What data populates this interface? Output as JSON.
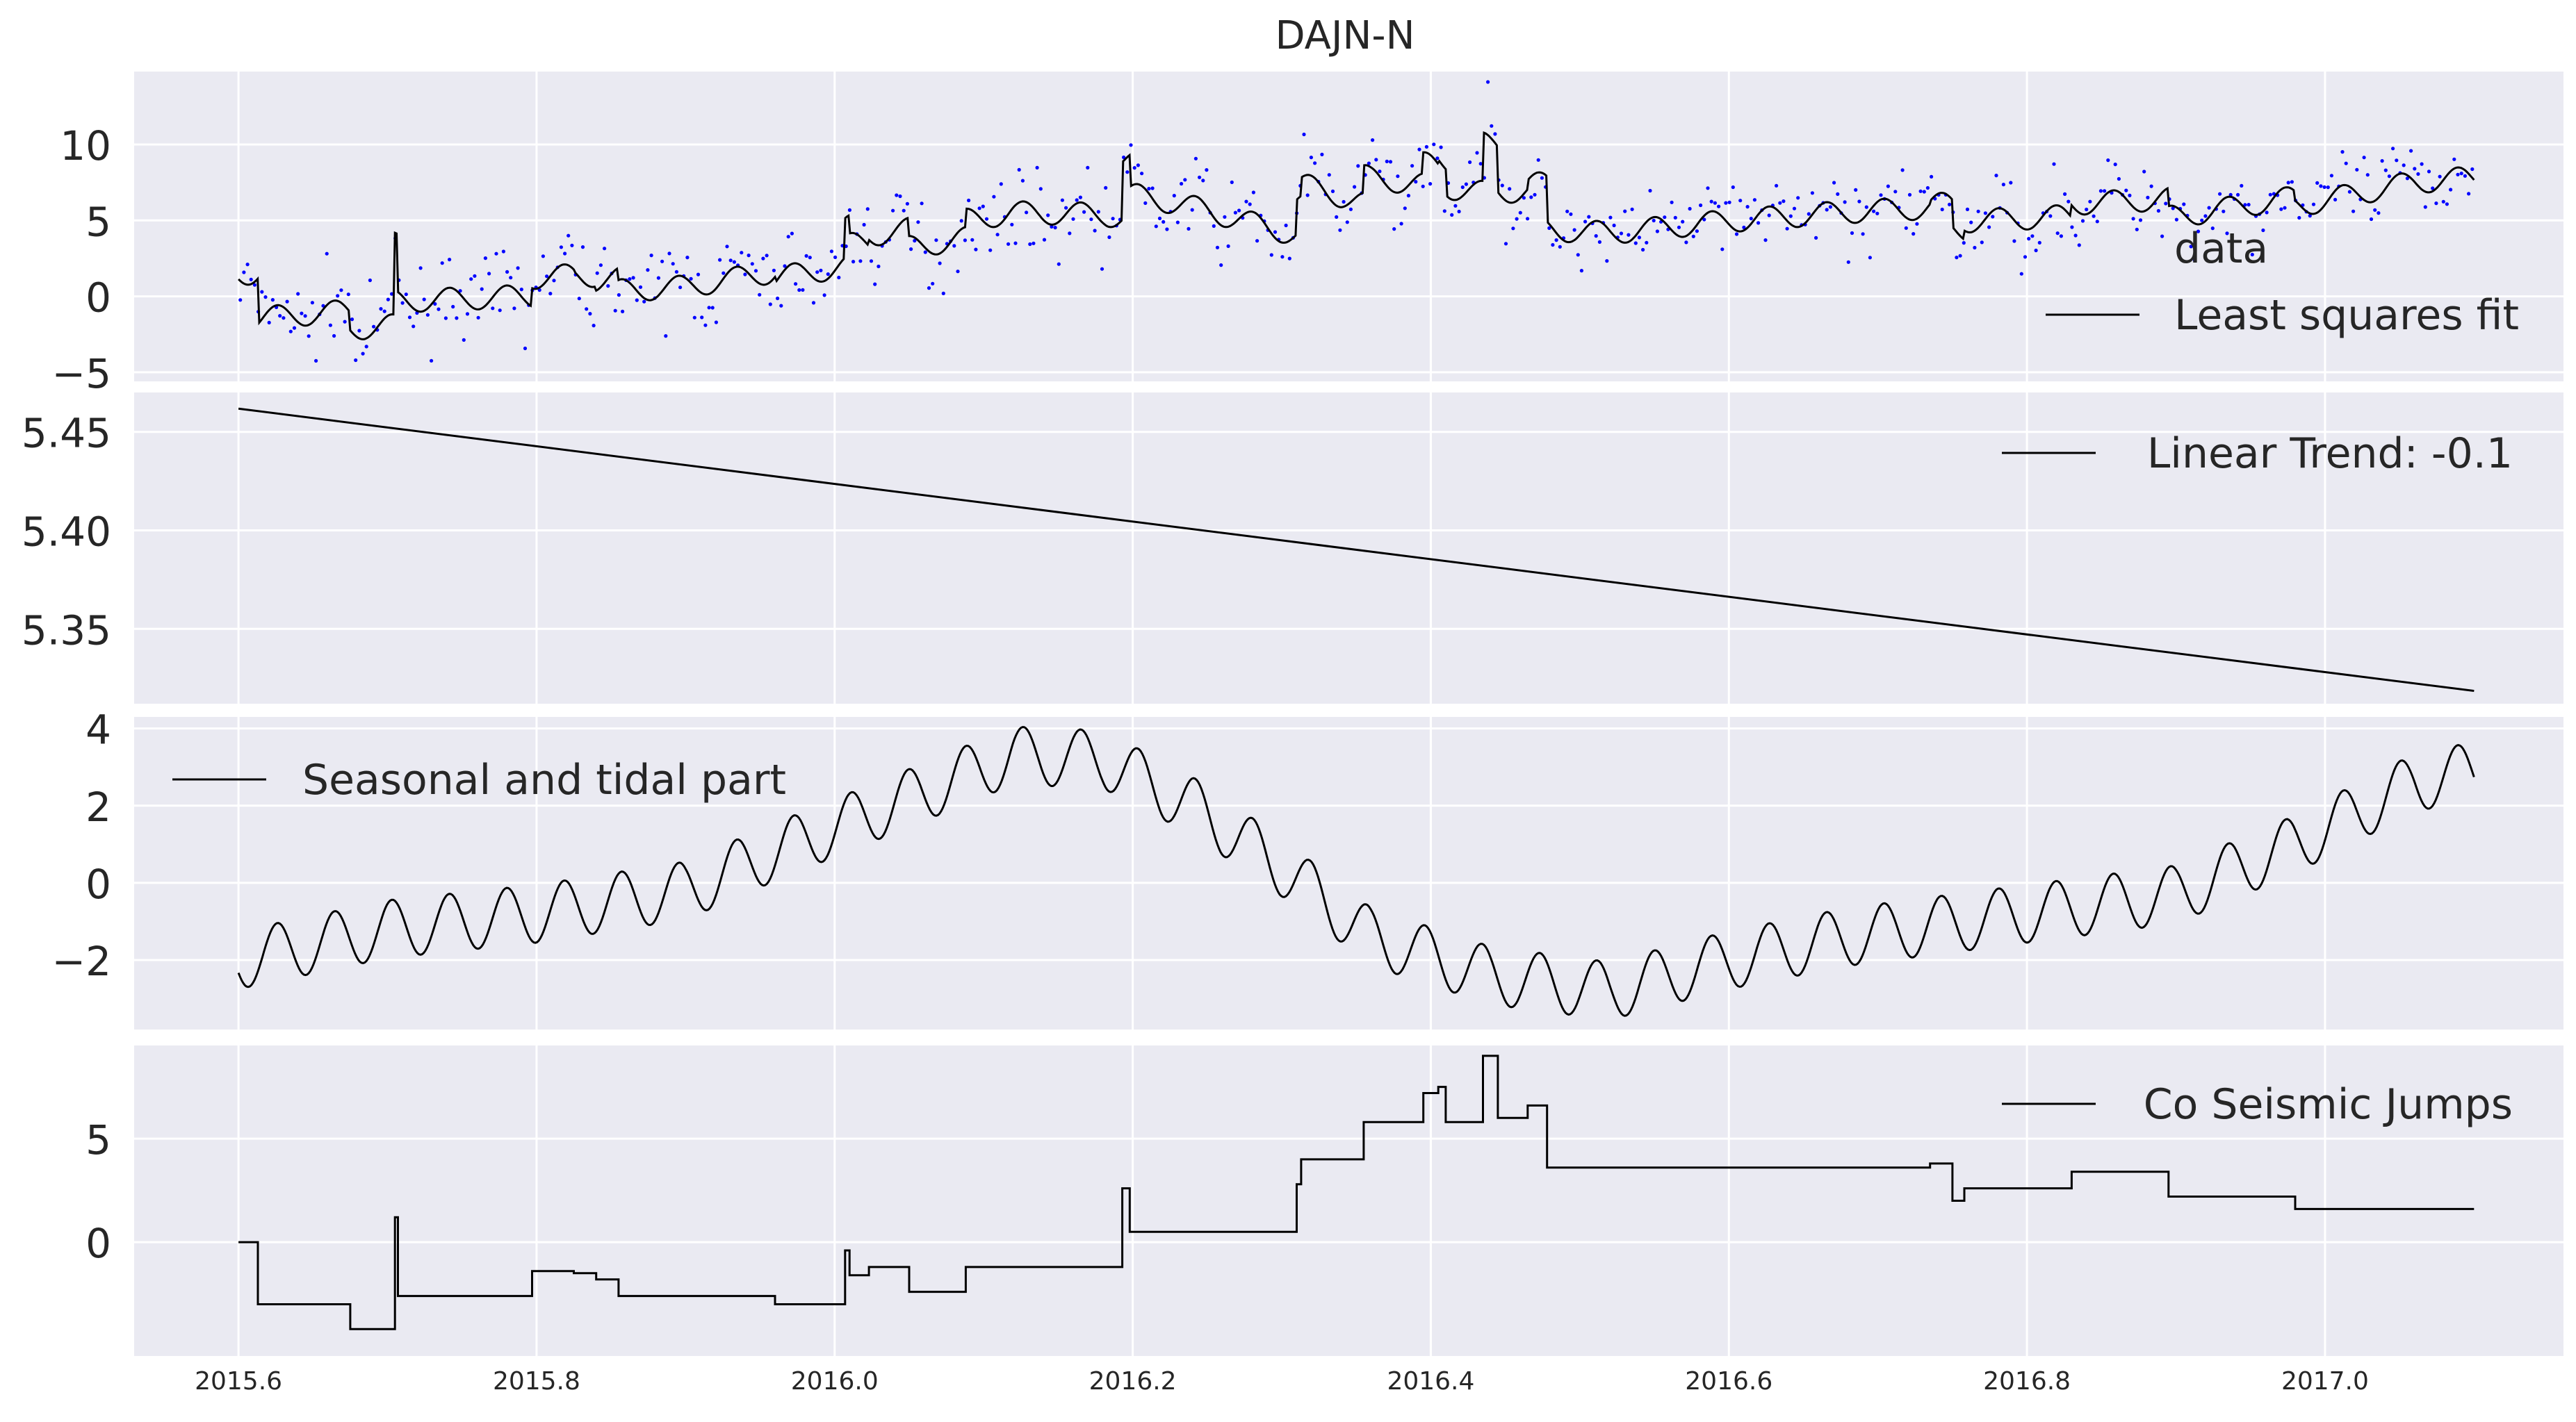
{
  "chart_data": {
    "title": "DAJN-N",
    "type": "line",
    "x_ticks": [
      "2015.6",
      "2015.8",
      "2016.0",
      "2016.2",
      "2016.4",
      "2016.6",
      "2016.8",
      "2017.0"
    ],
    "x_tick_values": [
      2015.6,
      2015.8,
      2016.0,
      2016.2,
      2016.4,
      2016.6,
      2016.8,
      2017.0
    ],
    "xlim": [
      2015.53,
      2017.16
    ],
    "x_start": 2015.6,
    "x_end": 2017.1,
    "panels": [
      {
        "id": "fit",
        "ylim": [
          -5.6,
          14.8
        ],
        "y_ticks": [
          "−5",
          "0",
          "5",
          "10"
        ],
        "y_tick_values": [
          -5,
          0,
          5,
          10
        ],
        "legend_position": "bottom-right",
        "series": [
          {
            "name": "data",
            "type": "scatter",
            "color": "#0000ff"
          },
          {
            "name": "Least squares fit",
            "type": "line",
            "color": "#000000"
          }
        ]
      },
      {
        "id": "trend",
        "ylim": [
          5.312,
          5.47
        ],
        "y_ticks": [
          "5.35",
          "5.40",
          "5.45"
        ],
        "y_tick_values": [
          5.35,
          5.4,
          5.45
        ],
        "legend_position": "top-right",
        "series": [
          {
            "name": "Linear Trend: -0.1",
            "type": "line",
            "color": "#000000",
            "x": [
              2015.6,
              2017.1
            ],
            "y": [
              5.4618,
              5.3185
            ]
          }
        ]
      },
      {
        "id": "seasonal",
        "ylim": [
          -3.8,
          4.3
        ],
        "y_ticks": [
          "−2",
          "0",
          "2",
          "4"
        ],
        "y_tick_values": [
          -2,
          0,
          2,
          4
        ],
        "legend_position": "top-left",
        "series": [
          {
            "name": "Seasonal and tidal part",
            "type": "line",
            "color": "#000000"
          }
        ]
      },
      {
        "id": "jumps",
        "ylim": [
          -5.5,
          9.5
        ],
        "y_ticks": [
          "0",
          "5"
        ],
        "y_tick_values": [
          0,
          5
        ],
        "legend_position": "top-right",
        "series": [
          {
            "name": "Co Seismic Jumps",
            "type": "step",
            "color": "#000000",
            "steps": [
              [
                2015.6,
                0
              ],
              [
                2015.613,
                -3.0
              ],
              [
                2015.675,
                -4.2
              ],
              [
                2015.705,
                1.2
              ],
              [
                2015.707,
                -2.6
              ],
              [
                2015.797,
                -1.4
              ],
              [
                2015.825,
                -1.5
              ],
              [
                2015.84,
                -1.8
              ],
              [
                2015.855,
                -2.6
              ],
              [
                2015.96,
                -3.0
              ],
              [
                2016.007,
                -0.4
              ],
              [
                2016.01,
                -1.6
              ],
              [
                2016.023,
                -1.2
              ],
              [
                2016.05,
                -2.4
              ],
              [
                2016.088,
                -1.2
              ],
              [
                2016.193,
                2.6
              ],
              [
                2016.198,
                0.5
              ],
              [
                2016.31,
                2.8
              ],
              [
                2016.313,
                4.0
              ],
              [
                2016.355,
                5.8
              ],
              [
                2016.395,
                7.2
              ],
              [
                2016.405,
                7.5
              ],
              [
                2016.41,
                5.8
              ],
              [
                2016.435,
                9.0
              ],
              [
                2016.445,
                6.0
              ],
              [
                2016.465,
                6.6
              ],
              [
                2016.478,
                3.6
              ],
              [
                2016.735,
                3.8
              ],
              [
                2016.75,
                2.0
              ],
              [
                2016.758,
                2.6
              ],
              [
                2016.83,
                3.4
              ],
              [
                2016.895,
                2.2
              ],
              [
                2016.98,
                1.6
              ]
            ]
          }
        ]
      }
    ]
  }
}
